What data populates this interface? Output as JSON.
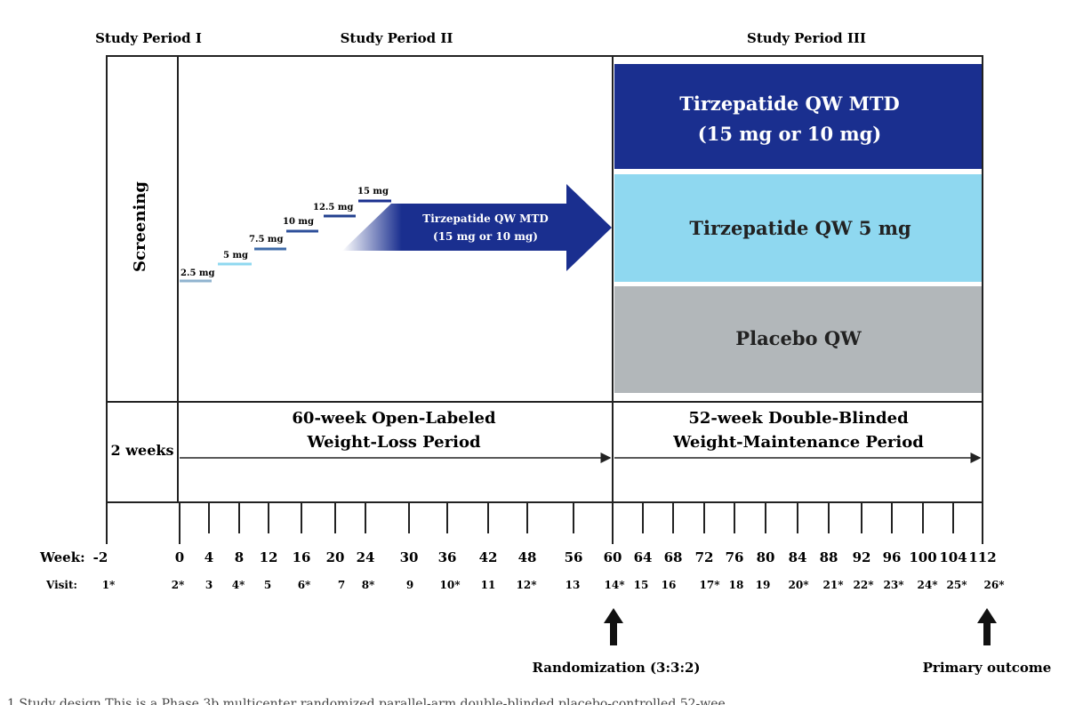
{
  "periods": {
    "p1": "Study Period I",
    "p2": "Study Period II",
    "p3": "Study Period III"
  },
  "screening_label": "Screening",
  "dose_steps": [
    "2.5 mg",
    "5 mg",
    "7.5 mg",
    "10 mg",
    "12.5 mg",
    "15 mg"
  ],
  "mtd_arrow": {
    "line1": "Tirzepatide QW MTD",
    "line2": "(15 mg or 10 mg)"
  },
  "arms": {
    "mtd": {
      "line1": "Tirzepatide QW MTD",
      "line2": "(15 mg or 10 mg)",
      "color": "#1a2f8f"
    },
    "five_mg": {
      "line1": "Tirzepatide QW 5 mg",
      "color": "#8fd8f0"
    },
    "placebo": {
      "line1": "Placebo QW",
      "color": "#b2b7ba"
    }
  },
  "phases": {
    "screening": "2 weeks",
    "open_label": {
      "line1": "60-week Open-Labeled",
      "line2": "Weight-Loss Period"
    },
    "double_blind": {
      "line1": "52-week Double-Blinded",
      "line2": "Weight-Maintenance Period"
    }
  },
  "week_label": "Week:",
  "visit_label": "Visit:",
  "weeks": [
    "-2",
    "0",
    "4",
    "8",
    "12",
    "16",
    "20",
    "24",
    "30",
    "36",
    "42",
    "48",
    "56",
    "60",
    "64",
    "68",
    "72",
    "76",
    "80",
    "84",
    "88",
    "92",
    "96",
    "100",
    "104",
    "112"
  ],
  "visits": [
    "1*",
    "2*",
    "3",
    "4*",
    "5",
    "6*",
    "7",
    "8*",
    "9",
    "10*",
    "11",
    "12*",
    "13",
    "14*",
    "15",
    "16",
    "17*",
    "18",
    "19",
    "20*",
    "21*",
    "22*",
    "23*",
    "24*",
    "25*",
    "26*"
  ],
  "randomization": "Randomization (3:3:2)",
  "primary_outcome": "Primary outcome",
  "caption": "1 Study design This is a Phase 3b multicenter randomized parallel-arm double-blinded placebo-controlled 52-wee"
}
